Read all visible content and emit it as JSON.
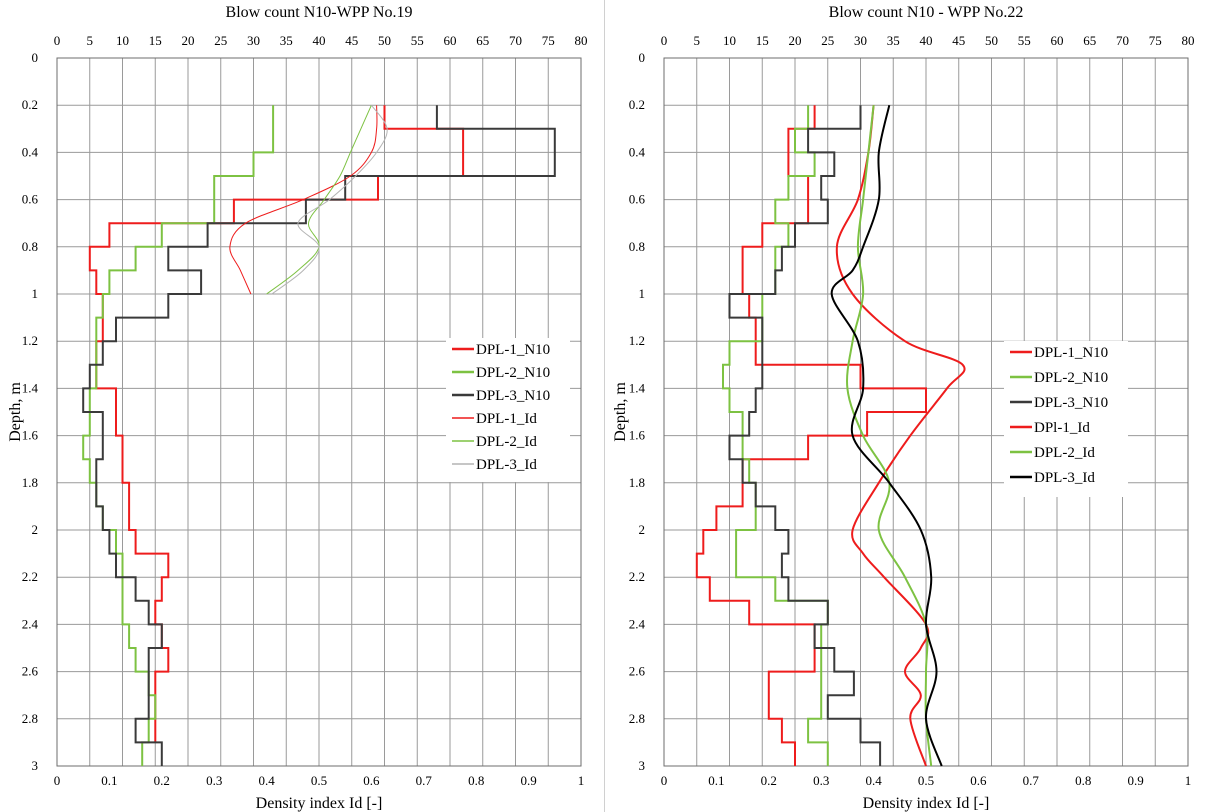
{
  "chart_data": [
    {
      "type": "line",
      "title": "Blow count N10-WPP No.19",
      "ylabel": "Depth, m",
      "top_axis": {
        "label": "Blow count N10-WPP No.19",
        "range": [
          0,
          80
        ],
        "ticks": [
          "0",
          "5",
          "10",
          "15",
          "20",
          "25",
          "30",
          "35",
          "40",
          "45",
          "50",
          "55",
          "60",
          "65",
          "70",
          "75",
          "80"
        ]
      },
      "bottom_axis": {
        "label": "Density index Id [-]",
        "range": [
          0,
          1
        ],
        "ticks": [
          "0",
          "0.1",
          "0.2",
          "0.3",
          "0.4",
          "0.5",
          "0.6",
          "0.7",
          "0.8",
          "0.9",
          "1"
        ]
      },
      "y_axis": {
        "range": [
          0,
          3
        ],
        "inverted": true,
        "ticks": [
          "0",
          "0.2",
          "0.4",
          "0.6",
          "0.8",
          "1",
          "1.2",
          "1.4",
          "1.6",
          "1.8",
          "2",
          "2.2",
          "2.4",
          "2.6",
          "2.8",
          "3"
        ]
      },
      "grid": true,
      "legend_position": "right",
      "series": [
        {
          "name": "DPL-1_N10",
          "axis": "top",
          "style": "step",
          "color": "#ee1c1c",
          "width": 2,
          "depth": [
            0.2,
            0.3,
            0.4,
            0.5,
            0.6,
            0.7,
            0.8,
            0.9,
            1.0,
            1.1,
            1.2,
            1.3,
            1.4,
            1.5,
            1.6,
            1.7,
            1.8,
            1.9,
            2.0,
            2.1,
            2.2,
            2.3,
            2.4,
            2.5,
            2.6,
            2.7,
            2.8
          ],
          "values": [
            50,
            62,
            62,
            49,
            27,
            8,
            5,
            6,
            7,
            7,
            6,
            6,
            9,
            9,
            10,
            10,
            11,
            11,
            12,
            17,
            16,
            15,
            16,
            17,
            15,
            15,
            15
          ]
        },
        {
          "name": "DPL-2_N10",
          "axis": "top",
          "style": "step",
          "color": "#7dc242",
          "width": 2,
          "depth": [
            0.2,
            0.3,
            0.4,
            0.5,
            0.6,
            0.7,
            0.8,
            0.9,
            1.0,
            1.1,
            1.2,
            1.3,
            1.4,
            1.5,
            1.6,
            1.7,
            1.8,
            1.9,
            2.0,
            2.1,
            2.2,
            2.3,
            2.4,
            2.5,
            2.6,
            2.7,
            2.8,
            2.9
          ],
          "values": [
            33,
            33,
            30,
            24,
            24,
            16,
            12,
            8,
            7,
            6,
            6,
            6,
            5,
            5,
            4,
            5,
            6,
            7,
            9,
            10,
            10,
            10,
            11,
            12,
            14,
            15,
            14,
            13
          ]
        },
        {
          "name": "DPL-3_N10",
          "axis": "top",
          "style": "step",
          "color": "#3a3a3a",
          "width": 2,
          "depth": [
            0.2,
            0.3,
            0.4,
            0.5,
            0.6,
            0.7,
            0.8,
            0.9,
            1.0,
            1.1,
            1.2,
            1.3,
            1.4,
            1.5,
            1.6,
            1.7,
            1.8,
            1.9,
            2.0,
            2.1,
            2.2,
            2.3,
            2.4,
            2.5,
            2.6,
            2.7,
            2.8,
            2.9
          ],
          "values": [
            58,
            76,
            76,
            44,
            38,
            23,
            17,
            22,
            17,
            9,
            7,
            5,
            4,
            7,
            7,
            6,
            6,
            7,
            8,
            9,
            12,
            14,
            16,
            14,
            14,
            14,
            12,
            16
          ]
        },
        {
          "name": "DPL-1_Id",
          "axis": "bottom",
          "style": "smooth",
          "color": "#ee1c1c",
          "width": 1,
          "depth": [
            0.2,
            0.3,
            0.4,
            0.5,
            0.6,
            0.7,
            0.8,
            0.9,
            1.0
          ],
          "values": [
            0.61,
            0.61,
            0.6,
            0.56,
            0.47,
            0.36,
            0.33,
            0.35,
            0.37
          ]
        },
        {
          "name": "DPL-2_Id",
          "axis": "bottom",
          "style": "smooth",
          "color": "#7dc242",
          "width": 1,
          "depth": [
            0.2,
            0.3,
            0.4,
            0.5,
            0.6,
            0.7,
            0.8,
            0.9,
            1.0
          ],
          "values": [
            0.6,
            0.58,
            0.56,
            0.54,
            0.51,
            0.48,
            0.5,
            0.46,
            0.4
          ]
        },
        {
          "name": "DPL-3_Id",
          "axis": "bottom",
          "style": "smooth",
          "color": "#b4b4b4",
          "width": 1,
          "depth": [
            0.2,
            0.3,
            0.4,
            0.5,
            0.6,
            0.7,
            0.8,
            0.9,
            1.0
          ],
          "values": [
            0.6,
            0.63,
            0.61,
            0.57,
            0.52,
            0.46,
            0.5,
            0.47,
            0.41
          ]
        }
      ]
    },
    {
      "type": "line",
      "title": "Blow count N10 - WPP No.22",
      "ylabel": "Depth, m",
      "top_axis": {
        "label": "Blow count N10 - WPP No.22",
        "range": [
          0,
          80
        ],
        "ticks": [
          "0",
          "5",
          "10",
          "15",
          "20",
          "25",
          "30",
          "35",
          "40",
          "45",
          "50",
          "55",
          "60",
          "65",
          "70",
          "75",
          "80"
        ]
      },
      "bottom_axis": {
        "label": "Density index Id [-]",
        "range": [
          0,
          1
        ],
        "ticks": [
          "0",
          "0.1",
          "0.2",
          "0.3",
          "0.4",
          "0.5",
          "0.6",
          "0.7",
          "0.8",
          "0.9",
          "1"
        ]
      },
      "y_axis": {
        "range": [
          0,
          3
        ],
        "inverted": true,
        "ticks": [
          "0",
          "0.2",
          "0.4",
          "0.6",
          "0.8",
          "1",
          "1.2",
          "1.4",
          "1.6",
          "1.8",
          "2",
          "2.2",
          "2.4",
          "2.6",
          "2.8",
          "3"
        ]
      },
      "grid": true,
      "legend_position": "right",
      "series": [
        {
          "name": "DPL-1_N10",
          "axis": "top",
          "style": "step",
          "color": "#ee1c1c",
          "width": 2,
          "depth": [
            0.2,
            0.3,
            0.4,
            0.5,
            0.6,
            0.7,
            0.8,
            0.9,
            1.0,
            1.1,
            1.2,
            1.3,
            1.4,
            1.5,
            1.6,
            1.7,
            1.8,
            1.9,
            2.0,
            2.1,
            2.2,
            2.3,
            2.4,
            2.5,
            2.6,
            2.7,
            2.8,
            2.9
          ],
          "values": [
            23,
            19,
            19,
            22,
            22,
            15,
            12,
            12,
            13,
            14,
            14,
            30,
            40,
            31,
            22,
            12,
            12,
            8,
            6,
            5,
            7,
            13,
            23,
            23,
            16,
            16,
            18,
            20
          ]
        },
        {
          "name": "DPL-2_N10",
          "axis": "top",
          "style": "step",
          "color": "#7dc242",
          "width": 2,
          "depth": [
            0.2,
            0.3,
            0.4,
            0.5,
            0.6,
            0.7,
            0.8,
            0.9,
            1.0,
            1.1,
            1.2,
            1.3,
            1.4,
            1.5,
            1.6,
            1.7,
            1.8,
            1.9,
            2.0,
            2.1,
            2.2,
            2.3,
            2.4,
            2.5,
            2.6,
            2.7,
            2.8,
            2.9
          ],
          "values": [
            22,
            20,
            23,
            19,
            17,
            19,
            17,
            17,
            15,
            15,
            10,
            9,
            10,
            12,
            12,
            13,
            14,
            14,
            11,
            11,
            17,
            25,
            24,
            24,
            24,
            24,
            22,
            25
          ]
        },
        {
          "name": "DPL-3_N10",
          "axis": "top",
          "style": "step",
          "color": "#3a3a3a",
          "width": 2,
          "depth": [
            0.2,
            0.3,
            0.4,
            0.5,
            0.6,
            0.7,
            0.8,
            0.9,
            1.0,
            1.1,
            1.2,
            1.3,
            1.4,
            1.5,
            1.6,
            1.7,
            1.8,
            1.9,
            2.0,
            2.1,
            2.2,
            2.3,
            2.4,
            2.5,
            2.6,
            2.7,
            2.8,
            2.9
          ],
          "values": [
            30,
            22,
            26,
            24,
            25,
            20,
            18,
            17,
            10,
            15,
            15,
            15,
            14,
            13,
            10,
            12,
            14,
            17,
            19,
            18,
            19,
            25,
            23,
            26,
            29,
            25,
            30,
            33
          ]
        },
        {
          "name": "DPl-1_Id",
          "axis": "bottom",
          "style": "smooth",
          "color": "#ee1c1c",
          "width": 2,
          "depth": [
            0.2,
            0.4,
            0.6,
            0.8,
            1.0,
            1.2,
            1.3,
            1.4,
            1.6,
            1.8,
            2.0,
            2.1,
            2.2,
            2.4,
            2.5,
            2.6,
            2.7,
            2.8,
            3.0
          ],
          "values": [
            0.4,
            0.39,
            0.37,
            0.33,
            0.36,
            0.46,
            0.57,
            0.54,
            0.47,
            0.41,
            0.36,
            0.38,
            0.42,
            0.5,
            0.49,
            0.46,
            0.49,
            0.47,
            0.5
          ]
        },
        {
          "name": "DPL-2_Id",
          "axis": "bottom",
          "style": "smooth",
          "color": "#7dc242",
          "width": 2,
          "depth": [
            0.2,
            0.4,
            0.6,
            0.8,
            1.0,
            1.2,
            1.4,
            1.6,
            1.8,
            2.0,
            2.2,
            2.4,
            2.6,
            2.8,
            3.0
          ],
          "values": [
            0.4,
            0.39,
            0.38,
            0.37,
            0.38,
            0.36,
            0.35,
            0.38,
            0.43,
            0.41,
            0.46,
            0.5,
            0.5,
            0.5,
            0.51
          ]
        },
        {
          "name": "DPL-3_Id",
          "axis": "bottom",
          "style": "smooth",
          "color": "#000000",
          "width": 2,
          "depth": [
            0.2,
            0.4,
            0.6,
            0.8,
            0.9,
            1.0,
            1.2,
            1.4,
            1.6,
            1.8,
            2.0,
            2.2,
            2.4,
            2.6,
            2.8,
            3.0
          ],
          "values": [
            0.43,
            0.41,
            0.41,
            0.38,
            0.36,
            0.32,
            0.37,
            0.38,
            0.36,
            0.43,
            0.49,
            0.51,
            0.5,
            0.52,
            0.5,
            0.53
          ]
        }
      ]
    }
  ]
}
